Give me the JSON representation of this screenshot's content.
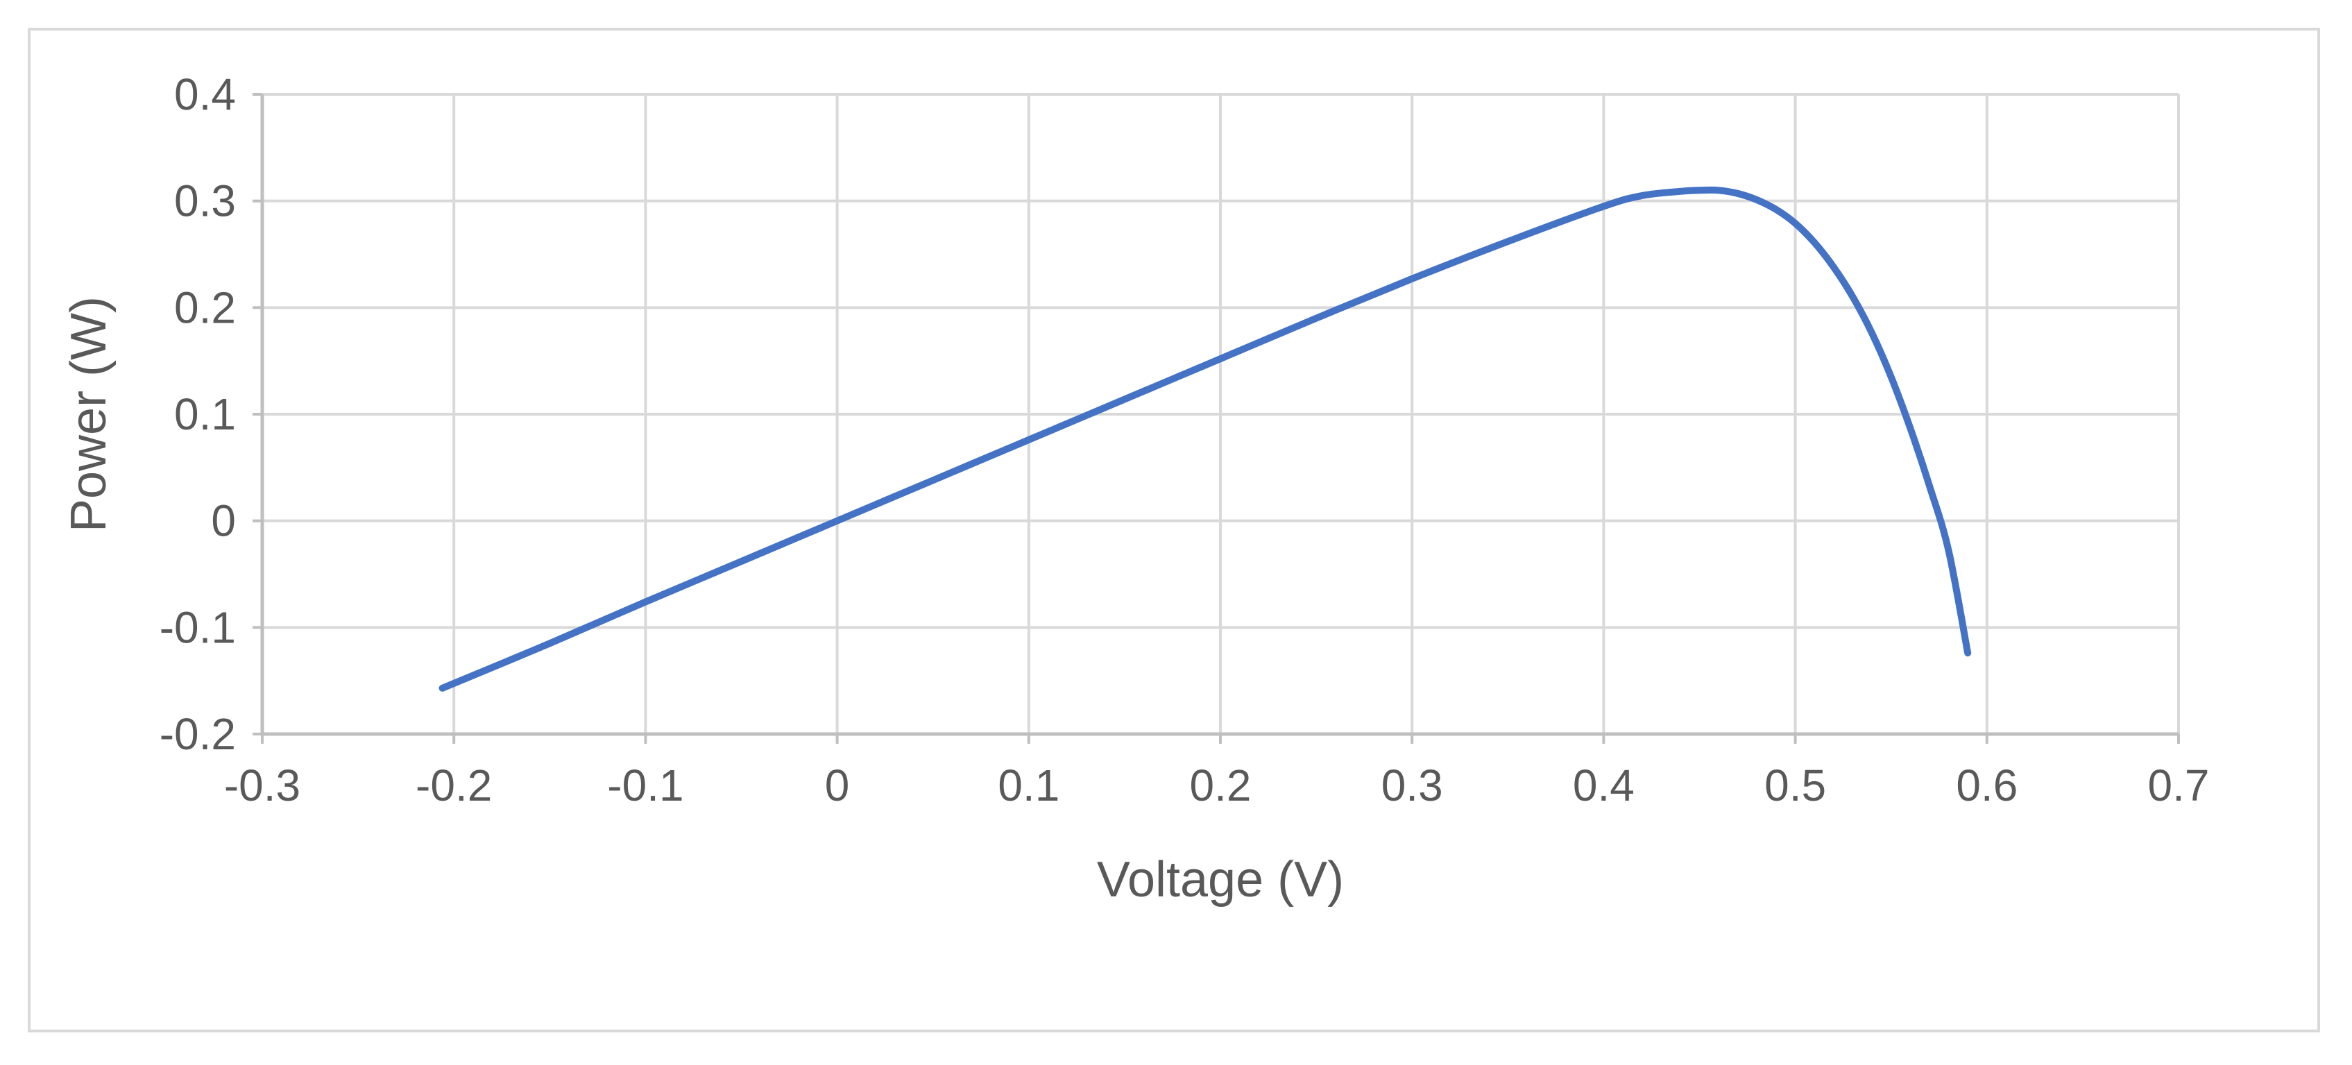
{
  "chart_data": {
    "type": "line",
    "title": "",
    "xlabel": "Voltage (V)",
    "ylabel": "Power (W)",
    "xlim": [
      -0.3,
      0.7
    ],
    "ylim": [
      -0.2,
      0.4
    ],
    "x_ticks": [
      -0.3,
      -0.2,
      -0.1,
      0,
      0.1,
      0.2,
      0.3,
      0.4,
      0.5,
      0.6,
      0.7
    ],
    "x_tick_labels": [
      "-0.3",
      "-0.2",
      "-0.1",
      "0",
      "0.1",
      "0.2",
      "0.3",
      "0.4",
      "0.5",
      "0.6",
      "0.7"
    ],
    "y_ticks": [
      -0.2,
      -0.1,
      0,
      0.1,
      0.2,
      0.3,
      0.4
    ],
    "y_tick_labels": [
      "-0.2",
      "-0.1",
      "0",
      "0.1",
      "0.2",
      "0.3",
      "0.4"
    ],
    "grid": true,
    "legend": "none",
    "series": [
      {
        "color": "#4472c4",
        "x": [
          -0.206,
          -0.15,
          -0.1,
          -0.05,
          0,
          0.05,
          0.1,
          0.15,
          0.2,
          0.25,
          0.3,
          0.35,
          0.4,
          0.42,
          0.44,
          0.45,
          0.46,
          0.47,
          0.48,
          0.49,
          0.5,
          0.51,
          0.52,
          0.53,
          0.54,
          0.55,
          0.56,
          0.57,
          0.58,
          0.59
        ],
        "y": [
          -0.157,
          -0.115,
          -0.076,
          -0.038,
          0.0,
          0.038,
          0.076,
          0.114,
          0.152,
          0.19,
          0.227,
          0.262,
          0.295,
          0.305,
          0.309,
          0.31,
          0.31,
          0.307,
          0.301,
          0.292,
          0.279,
          0.261,
          0.238,
          0.21,
          0.176,
          0.135,
          0.087,
          0.033,
          -0.028,
          -0.124
        ]
      }
    ]
  }
}
